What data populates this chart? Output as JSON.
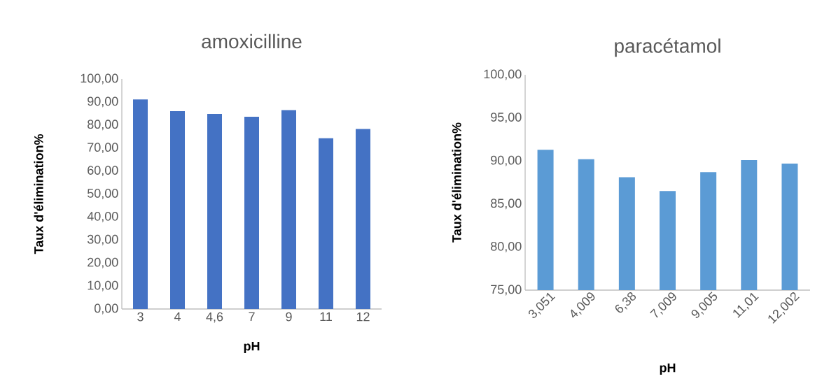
{
  "chart_data": [
    {
      "type": "bar",
      "title": "amoxicilline",
      "xlabel": "pH",
      "ylabel": "Taux d'élimination%",
      "categories": [
        "3",
        "4",
        "4,6",
        "7",
        "9",
        "11",
        "12"
      ],
      "values": [
        91.1,
        86.0,
        84.8,
        83.6,
        86.5,
        74.2,
        78.3
      ],
      "color": "#4472c4",
      "ylim": [
        0,
        100
      ],
      "yticks": [
        {
          "value": 0,
          "label": "0,00"
        },
        {
          "value": 10,
          "label": "10,00"
        },
        {
          "value": 20,
          "label": "20,00"
        },
        {
          "value": 30,
          "label": "30,00"
        },
        {
          "value": 40,
          "label": "40,00"
        },
        {
          "value": 50,
          "label": "50,00"
        },
        {
          "value": 60,
          "label": "60,00"
        },
        {
          "value": 70,
          "label": "70,00"
        },
        {
          "value": 80,
          "label": "80,00"
        },
        {
          "value": 90,
          "label": "90,00"
        },
        {
          "value": 100,
          "label": "100,00"
        }
      ],
      "grid": false
    },
    {
      "type": "bar",
      "title": "paracétamol",
      "xlabel": "pH",
      "ylabel": "Taux d'élimination%",
      "categories": [
        "3,051",
        "4,009",
        "6,38",
        "7,009",
        "9,005",
        "11,01",
        "12,002"
      ],
      "values": [
        91.3,
        90.2,
        88.1,
        86.5,
        88.7,
        90.1,
        89.7
      ],
      "color": "#5b9bd5",
      "ylim": [
        75,
        100
      ],
      "yticks": [
        {
          "value": 75,
          "label": "75,00"
        },
        {
          "value": 80,
          "label": "80,00"
        },
        {
          "value": 85,
          "label": "85,00"
        },
        {
          "value": 90,
          "label": "90,00"
        },
        {
          "value": 95,
          "label": "95,00"
        },
        {
          "value": 100,
          "label": "100,00"
        }
      ],
      "grid": false
    }
  ]
}
